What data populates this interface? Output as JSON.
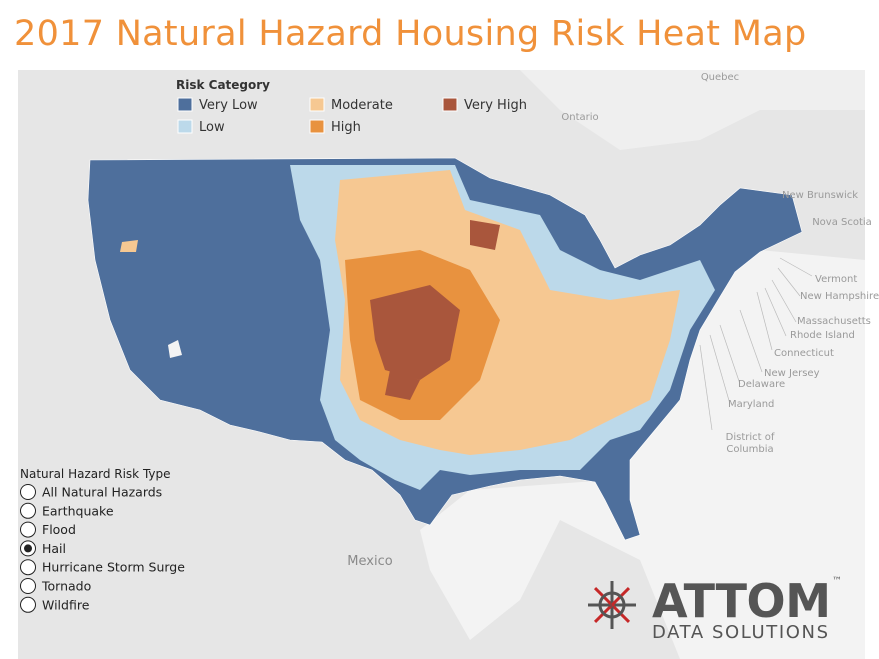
{
  "header": {
    "title": "2017 Natural Hazard Housing Risk Heat Map"
  },
  "legend": {
    "title": "Risk Category",
    "items": [
      {
        "label": "Very Low",
        "color": "#4e6f9c"
      },
      {
        "label": "Low",
        "color": "#bcd9ea"
      },
      {
        "label": "Moderate",
        "color": "#f6c892"
      },
      {
        "label": "High",
        "color": "#e8923f"
      },
      {
        "label": "Very High",
        "color": "#a9563c"
      }
    ]
  },
  "hazard_selector": {
    "title": "Natural Hazard Risk Type",
    "options": [
      "All Natural Hazards",
      "Earthquake",
      "Flood",
      "Hail",
      "Hurricane Storm Surge",
      "Tornado",
      "Wildfire"
    ],
    "selected_index": 3
  },
  "map_labels": [
    "Quebec",
    "Ontario",
    "New Brunswick",
    "Nova Scotia",
    "Vermont",
    "New Hampshire",
    "Massachusetts",
    "Rhode Island",
    "Connecticut",
    "New Jersey",
    "Delaware",
    "Maryland",
    "District of Columbia",
    "Mexico"
  ],
  "logo": {
    "name": "ATTOM",
    "mark": "™",
    "tagline": "DATA SOLUTIONS"
  }
}
